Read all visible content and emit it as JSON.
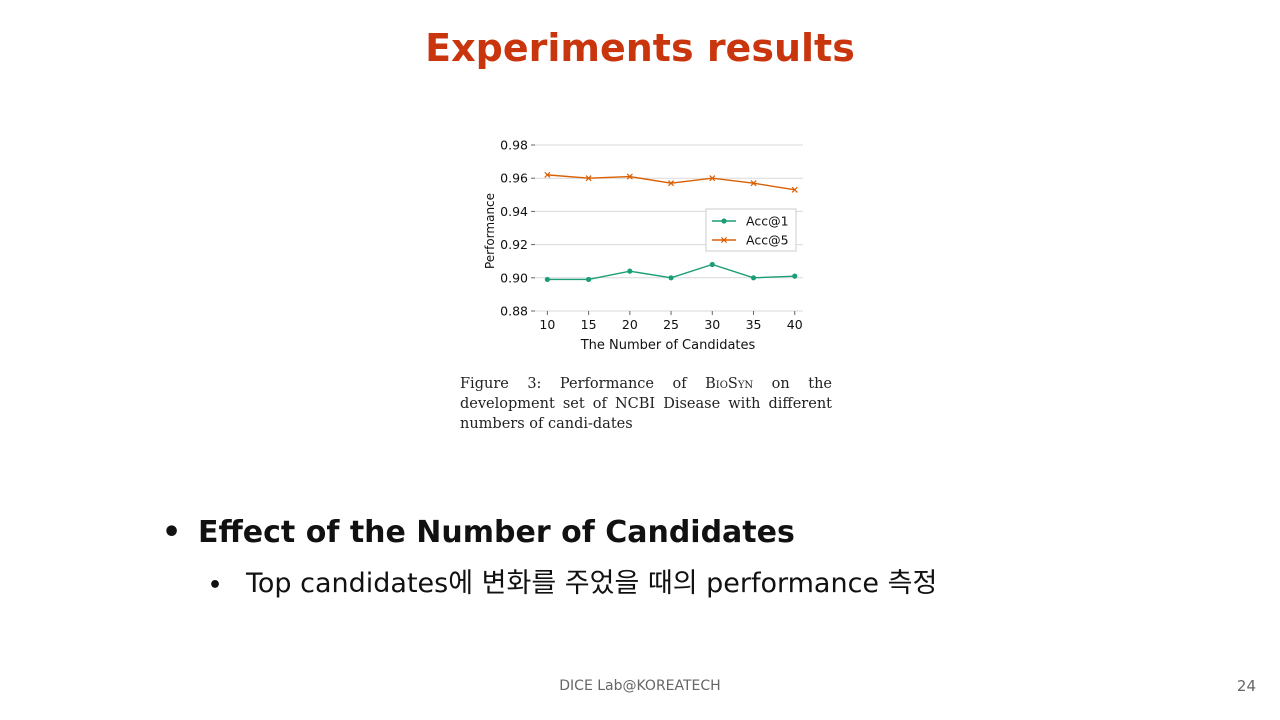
{
  "slide": {
    "title": "Experiments results",
    "bullet_main": "Effect of the Number of Candidates",
    "bullet_sub": "Top candidates에 변화를 주었을 때의 performance 측정",
    "bullet_marker": "•",
    "footer": "DICE Lab@KOREATECH",
    "page_number": "24"
  },
  "caption": {
    "prefix": "Figure 3: Performance of ",
    "model": "BioSyn",
    "suffix": " on the development set of NCBI Disease with different numbers of candi-dates"
  },
  "chart_data": {
    "type": "line",
    "x": [
      10,
      15,
      20,
      25,
      30,
      35,
      40
    ],
    "xlabel": "The Number of Candidates",
    "ylabel": "Performance",
    "xlim": [
      8.5,
      41
    ],
    "ylim": [
      0.88,
      0.98
    ],
    "yticks": [
      0.88,
      0.9,
      0.92,
      0.94,
      0.96,
      0.98
    ],
    "ytick_labels": [
      "0.88",
      "0.90",
      "0.92",
      "0.94",
      "0.96",
      "0.98"
    ],
    "xticks": [
      10,
      15,
      20,
      25,
      30,
      35,
      40
    ],
    "xtick_labels": [
      "10",
      "15",
      "20",
      "25",
      "30",
      "35",
      "40"
    ],
    "grid": "horizontal",
    "legend_position": "center-right",
    "series": [
      {
        "name": "Acc@1",
        "marker": "circle",
        "color": "#1b9e77",
        "values": [
          0.899,
          0.899,
          0.904,
          0.9,
          0.908,
          0.9,
          0.901
        ]
      },
      {
        "name": "Acc@5",
        "marker": "x",
        "color": "#d95f02",
        "values": [
          0.962,
          0.96,
          0.961,
          0.957,
          0.96,
          0.957,
          0.953
        ]
      }
    ]
  }
}
